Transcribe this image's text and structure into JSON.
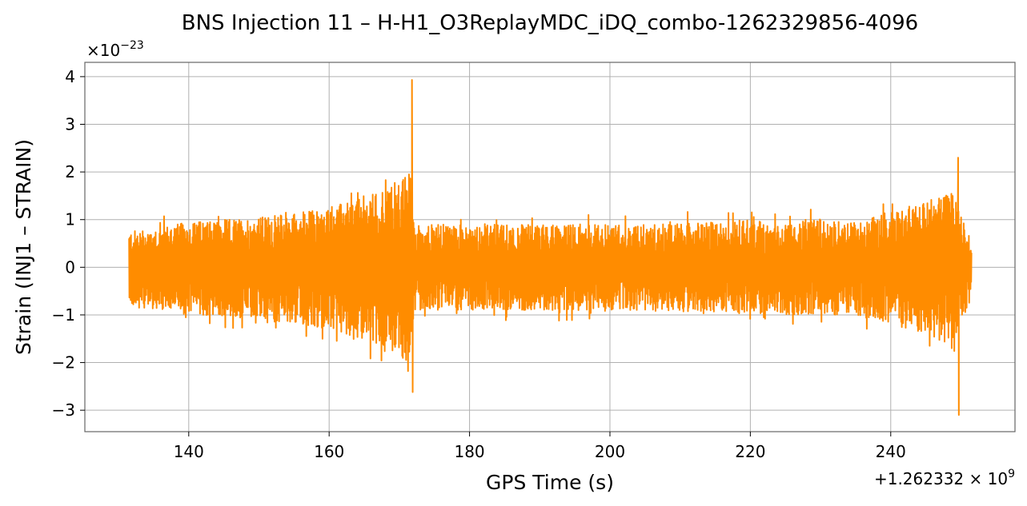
{
  "chart_data": {
    "type": "line",
    "title": "BNS Injection 11 – H-H1_O3ReplayMDC_iDQ_combo-1262329856-4096",
    "xlabel": "GPS Time (s)",
    "ylabel": "Strain (INJ1 – STRAIN)",
    "x_offset_label": "+1.262332 × 10",
    "x_offset_exponent": "9",
    "y_scale_label": "×10",
    "y_scale_exponent": "−23",
    "xlim": [
      125.2,
      257.7
    ],
    "ylim": [
      -3.45,
      4.3
    ],
    "x_ticks": [
      140,
      160,
      180,
      200,
      220,
      240
    ],
    "x_tick_labels": [
      "140",
      "160",
      "180",
      "200",
      "220",
      "240"
    ],
    "y_ticks": [
      -3,
      -2,
      -1,
      0,
      1,
      2,
      3,
      4
    ],
    "y_tick_labels": [
      "−3",
      "−2",
      "−1",
      "0",
      "1",
      "2",
      "3",
      "4"
    ],
    "grid": true,
    "series": [
      {
        "color": "#ff8c00",
        "x_range": [
          131.5,
          251.5
        ],
        "envelope": [
          {
            "x": 131.5,
            "hi": 0.75,
            "lo": -0.8
          },
          {
            "x": 140.0,
            "hi": 0.95,
            "lo": -1.0
          },
          {
            "x": 150.0,
            "hi": 1.05,
            "lo": -1.1
          },
          {
            "x": 160.0,
            "hi": 1.25,
            "lo": -1.3
          },
          {
            "x": 166.0,
            "hi": 1.55,
            "lo": -1.55
          },
          {
            "x": 170.0,
            "hi": 1.8,
            "lo": -1.85
          },
          {
            "x": 171.5,
            "hi": 2.0,
            "lo": -2.1
          },
          {
            "x": 172.3,
            "hi": 0.9,
            "lo": -0.9
          },
          {
            "x": 180.0,
            "hi": 0.9,
            "lo": -0.9
          },
          {
            "x": 200.0,
            "hi": 0.9,
            "lo": -0.9
          },
          {
            "x": 218.0,
            "hi": 0.95,
            "lo": -0.95
          },
          {
            "x": 220.0,
            "hi": 1.2,
            "lo": -1.15
          },
          {
            "x": 222.0,
            "hi": 0.9,
            "lo": -0.9
          },
          {
            "x": 228.0,
            "hi": 1.0,
            "lo": -1.05
          },
          {
            "x": 235.0,
            "hi": 0.95,
            "lo": -1.0
          },
          {
            "x": 240.0,
            "hi": 1.2,
            "lo": -1.2
          },
          {
            "x": 246.0,
            "hi": 1.4,
            "lo": -1.45
          },
          {
            "x": 249.0,
            "hi": 1.7,
            "lo": -1.8
          },
          {
            "x": 250.5,
            "hi": 0.9,
            "lo": -0.9
          },
          {
            "x": 251.5,
            "hi": 0.4,
            "lo": -0.5
          }
        ],
        "peaks": [
          {
            "x": 171.8,
            "y": 3.93
          },
          {
            "x": 171.9,
            "y": -2.62
          },
          {
            "x": 249.6,
            "y": 2.3
          },
          {
            "x": 249.7,
            "y": -3.1
          }
        ]
      }
    ]
  }
}
